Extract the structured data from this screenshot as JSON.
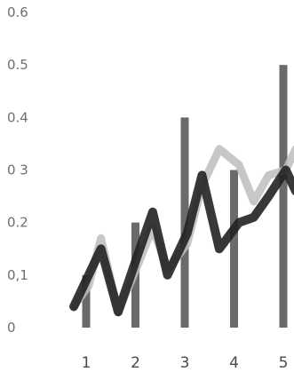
{
  "chart_data": {
    "type": "bar",
    "title": "",
    "xlabel": "",
    "ylabel": "",
    "categories": [
      "1",
      "2",
      "3",
      "4",
      "5"
    ],
    "y_ticks": [
      "0",
      "0,1",
      "0.2",
      "0 3",
      "0.4",
      "0.5",
      "0.6"
    ],
    "ylim": [
      0,
      0.6
    ],
    "grid": false,
    "legend": "none",
    "series": [
      {
        "type": "bar",
        "color": "#6a6a6a",
        "values": [
          0.1,
          0.2,
          0.4,
          0.3,
          0.5
        ]
      },
      {
        "type": "line",
        "color": "#222222",
        "x": [
          0.75,
          1.05,
          1.3,
          1.65,
          2.05,
          2.35,
          2.65,
          3.05,
          3.35,
          3.7,
          4.1,
          4.4,
          4.7,
          5.05,
          5.25
        ],
        "y": [
          0.04,
          0.1,
          0.15,
          0.03,
          0.14,
          0.22,
          0.1,
          0.18,
          0.29,
          0.15,
          0.2,
          0.21,
          0.25,
          0.3,
          0.26
        ]
      },
      {
        "type": "line",
        "color": "#bdbdbd",
        "x": [
          0.75,
          1.05,
          1.3,
          1.65,
          2.05,
          2.35,
          2.65,
          3.05,
          3.35,
          3.7,
          4.1,
          4.4,
          4.7,
          5.05,
          5.25
        ],
        "y": [
          0.04,
          0.08,
          0.17,
          0.03,
          0.12,
          0.19,
          0.11,
          0.16,
          0.27,
          0.34,
          0.31,
          0.24,
          0.29,
          0.3,
          0.34
        ]
      }
    ]
  }
}
